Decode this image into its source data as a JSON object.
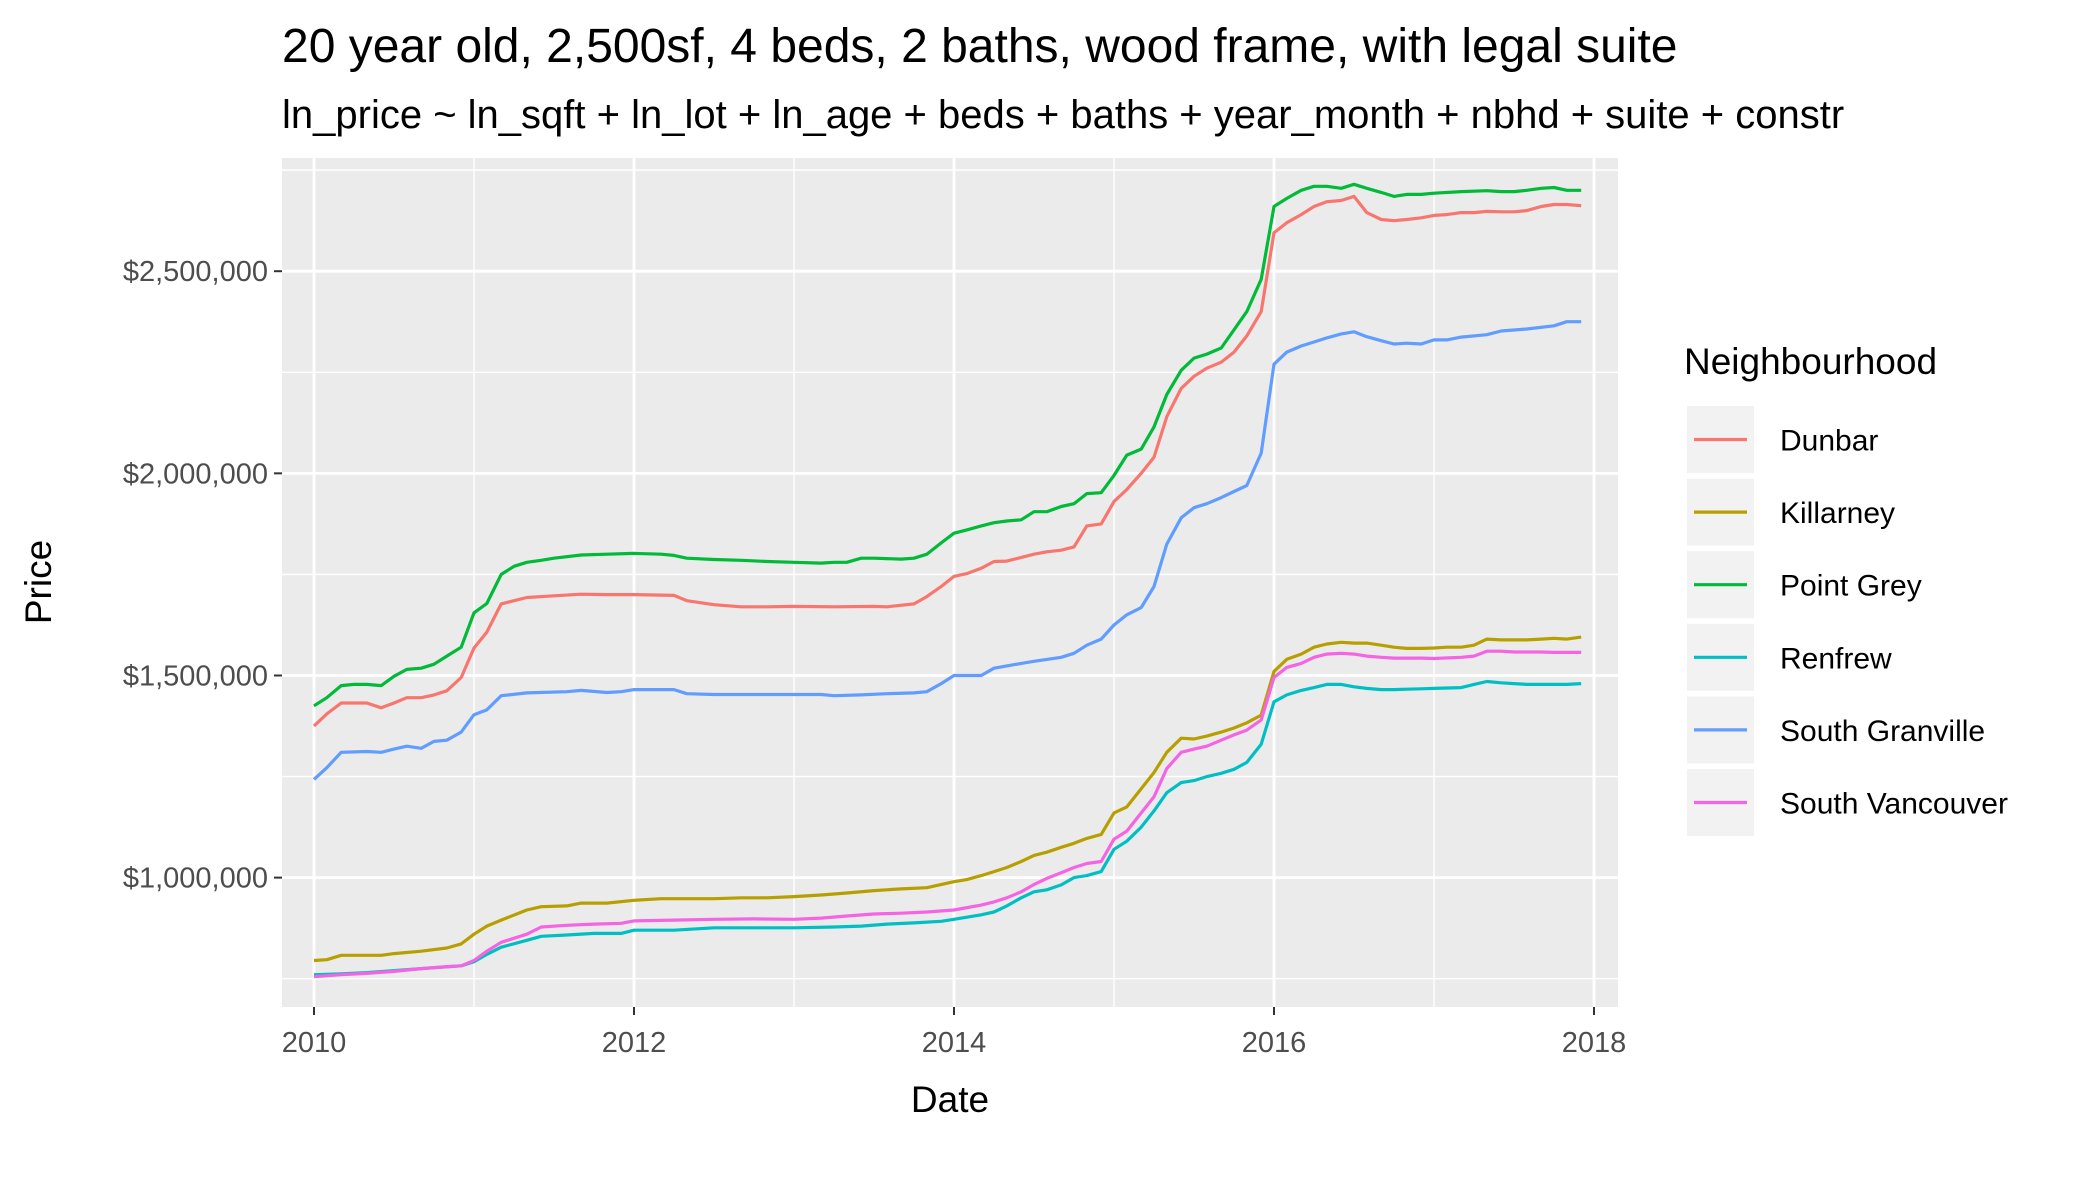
{
  "chart_data": {
    "type": "line",
    "title": "20 year old, 2,500sf, 4 beds, 2 baths, wood frame, with legal suite",
    "subtitle": "ln_price ~ ln_sqft + ln_lot + ln_age + beds + baths + year_month + nbhd + suite + constr",
    "xlabel": "Date",
    "ylabel": "Price",
    "xlim": [
      2009.8,
      2018.15
    ],
    "ylim": [
      680000,
      2780000
    ],
    "x_ticks": [
      2010,
      2012,
      2014,
      2016,
      2018
    ],
    "x_tick_labels": [
      "2010",
      "2012",
      "2014",
      "2016",
      "2018"
    ],
    "y_ticks": [
      1000000,
      1500000,
      2000000,
      2500000
    ],
    "y_tick_labels": [
      "$1,000,000",
      "$1,500,000",
      "$2,000,000",
      "$2,500,000"
    ],
    "grid": true,
    "legend": {
      "title": "Neighbourhood",
      "position": "right"
    },
    "series": [
      {
        "name": "Dunbar",
        "color": "#F8766D",
        "x": [
          2010.0,
          2010.08,
          2010.17,
          2010.33,
          2010.42,
          2010.5,
          2010.58,
          2010.67,
          2010.75,
          2010.83,
          2010.92,
          2011.0,
          2011.08,
          2011.17,
          2011.33,
          2011.5,
          2011.67,
          2011.83,
          2012.0,
          2012.25,
          2012.33,
          2012.5,
          2012.67,
          2012.83,
          2013.0,
          2013.25,
          2013.5,
          2013.58,
          2013.75,
          2013.83,
          2013.92,
          2014.0,
          2014.08,
          2014.17,
          2014.25,
          2014.33,
          2014.42,
          2014.5,
          2014.58,
          2014.67,
          2014.75,
          2014.83,
          2014.92,
          2015.0,
          2015.08,
          2015.17,
          2015.25,
          2015.33,
          2015.42,
          2015.5,
          2015.58,
          2015.67,
          2015.75,
          2015.83,
          2015.92,
          2016.0,
          2016.08,
          2016.17,
          2016.25,
          2016.33,
          2016.42,
          2016.5,
          2016.58,
          2016.67,
          2016.75,
          2016.83,
          2016.92,
          2017.0,
          2017.08,
          2017.17,
          2017.25,
          2017.33,
          2017.42,
          2017.5,
          2017.58,
          2017.67,
          2017.75,
          2017.83,
          2017.92
        ],
        "y": [
          1375000,
          1405000,
          1432000,
          1432000,
          1420000,
          1432000,
          1445000,
          1445000,
          1452000,
          1462000,
          1495000,
          1568000,
          1607000,
          1677000,
          1693000,
          1697000,
          1701000,
          1700000,
          1700000,
          1698000,
          1685000,
          1675000,
          1670000,
          1670000,
          1671000,
          1670000,
          1671000,
          1670000,
          1677000,
          1695000,
          1720000,
          1745000,
          1752000,
          1765000,
          1782000,
          1783000,
          1792000,
          1800000,
          1806000,
          1810000,
          1818000,
          1870000,
          1875000,
          1930000,
          1960000,
          2000000,
          2040000,
          2140000,
          2210000,
          2240000,
          2260000,
          2275000,
          2300000,
          2340000,
          2400000,
          2595000,
          2620000,
          2640000,
          2660000,
          2672000,
          2675000,
          2685000,
          2645000,
          2628000,
          2625000,
          2628000,
          2632000,
          2638000,
          2640000,
          2645000,
          2645000,
          2648000,
          2647000,
          2647000,
          2650000,
          2660000,
          2665000,
          2665000,
          2662000
        ]
      },
      {
        "name": "Killarney",
        "color": "#B79F00",
        "x": [
          2010.0,
          2010.08,
          2010.17,
          2010.33,
          2010.42,
          2010.5,
          2010.67,
          2010.83,
          2010.92,
          2011.0,
          2011.08,
          2011.17,
          2011.33,
          2011.42,
          2011.58,
          2011.67,
          2011.83,
          2012.0,
          2012.17,
          2012.33,
          2012.5,
          2012.67,
          2012.83,
          2013.0,
          2013.17,
          2013.33,
          2013.5,
          2013.58,
          2013.67,
          2013.83,
          2014.0,
          2014.08,
          2014.17,
          2014.25,
          2014.33,
          2014.42,
          2014.5,
          2014.58,
          2014.67,
          2014.75,
          2014.83,
          2014.92,
          2015.0,
          2015.08,
          2015.17,
          2015.25,
          2015.33,
          2015.42,
          2015.5,
          2015.58,
          2015.67,
          2015.75,
          2015.83,
          2015.92,
          2016.0,
          2016.08,
          2016.17,
          2016.25,
          2016.33,
          2016.42,
          2016.5,
          2016.58,
          2016.67,
          2016.75,
          2016.83,
          2016.92,
          2017.0,
          2017.08,
          2017.17,
          2017.25,
          2017.33,
          2017.42,
          2017.5,
          2017.58,
          2017.67,
          2017.75,
          2017.83,
          2017.92
        ],
        "y": [
          795000,
          797000,
          808000,
          808000,
          808000,
          812000,
          818000,
          826000,
          836000,
          860000,
          880000,
          895000,
          920000,
          928000,
          930000,
          937000,
          937000,
          944000,
          948000,
          948000,
          948000,
          950000,
          950000,
          953000,
          957000,
          962000,
          968000,
          970000,
          972000,
          975000,
          990000,
          995000,
          1005000,
          1015000,
          1025000,
          1040000,
          1055000,
          1063000,
          1075000,
          1085000,
          1097000,
          1107000,
          1160000,
          1175000,
          1220000,
          1260000,
          1310000,
          1345000,
          1343000,
          1350000,
          1360000,
          1370000,
          1383000,
          1402000,
          1510000,
          1540000,
          1553000,
          1570000,
          1578000,
          1582000,
          1580000,
          1580000,
          1575000,
          1570000,
          1567000,
          1567000,
          1568000,
          1570000,
          1570000,
          1575000,
          1590000,
          1588000,
          1588000,
          1588000,
          1590000,
          1592000,
          1590000,
          1595000
        ]
      },
      {
        "name": "Point Grey",
        "color": "#00BA38",
        "x": [
          2010.0,
          2010.08,
          2010.17,
          2010.25,
          2010.33,
          2010.42,
          2010.5,
          2010.58,
          2010.67,
          2010.75,
          2010.83,
          2010.92,
          2011.0,
          2011.08,
          2011.17,
          2011.25,
          2011.33,
          2011.42,
          2011.5,
          2011.67,
          2011.83,
          2012.0,
          2012.17,
          2012.25,
          2012.33,
          2012.5,
          2012.67,
          2012.83,
          2013.0,
          2013.17,
          2013.25,
          2013.33,
          2013.42,
          2013.5,
          2013.67,
          2013.75,
          2013.83,
          2013.92,
          2014.0,
          2014.08,
          2014.17,
          2014.25,
          2014.33,
          2014.42,
          2014.5,
          2014.58,
          2014.67,
          2014.75,
          2014.83,
          2014.92,
          2015.0,
          2015.08,
          2015.17,
          2015.25,
          2015.33,
          2015.42,
          2015.5,
          2015.58,
          2015.67,
          2015.75,
          2015.83,
          2015.92,
          2016.0,
          2016.08,
          2016.17,
          2016.25,
          2016.33,
          2016.42,
          2016.5,
          2016.58,
          2016.67,
          2016.75,
          2016.83,
          2016.92,
          2017.0,
          2017.17,
          2017.33,
          2017.42,
          2017.5,
          2017.58,
          2017.67,
          2017.75,
          2017.83,
          2017.92
        ],
        "y": [
          1425000,
          1445000,
          1475000,
          1478000,
          1478000,
          1475000,
          1498000,
          1515000,
          1518000,
          1528000,
          1548000,
          1570000,
          1655000,
          1678000,
          1750000,
          1770000,
          1780000,
          1785000,
          1790000,
          1798000,
          1800000,
          1802000,
          1800000,
          1797000,
          1790000,
          1787000,
          1785000,
          1782000,
          1780000,
          1778000,
          1780000,
          1780000,
          1790000,
          1790000,
          1788000,
          1790000,
          1800000,
          1828000,
          1852000,
          1860000,
          1870000,
          1878000,
          1882000,
          1885000,
          1905000,
          1905000,
          1918000,
          1925000,
          1950000,
          1952000,
          1995000,
          2045000,
          2060000,
          2115000,
          2195000,
          2255000,
          2285000,
          2295000,
          2310000,
          2355000,
          2400000,
          2480000,
          2660000,
          2680000,
          2700000,
          2710000,
          2710000,
          2705000,
          2715000,
          2705000,
          2695000,
          2685000,
          2690000,
          2690000,
          2693000,
          2697000,
          2699000,
          2697000,
          2697000,
          2700000,
          2705000,
          2707000,
          2700000,
          2700000
        ]
      },
      {
        "name": "Renfrew",
        "color": "#00BFC4",
        "x": [
          2010.0,
          2010.17,
          2010.33,
          2010.5,
          2010.67,
          2010.92,
          2011.0,
          2011.08,
          2011.17,
          2011.33,
          2011.42,
          2011.58,
          2011.75,
          2011.92,
          2012.0,
          2012.25,
          2012.5,
          2012.75,
          2013.0,
          2013.25,
          2013.42,
          2013.58,
          2013.75,
          2013.92,
          2014.0,
          2014.17,
          2014.25,
          2014.33,
          2014.42,
          2014.5,
          2014.58,
          2014.67,
          2014.75,
          2014.83,
          2014.92,
          2015.0,
          2015.08,
          2015.17,
          2015.25,
          2015.33,
          2015.42,
          2015.5,
          2015.58,
          2015.67,
          2015.75,
          2015.83,
          2015.92,
          2016.0,
          2016.08,
          2016.17,
          2016.25,
          2016.33,
          2016.42,
          2016.5,
          2016.58,
          2016.67,
          2016.75,
          2016.83,
          2016.92,
          2017.0,
          2017.17,
          2017.25,
          2017.33,
          2017.42,
          2017.5,
          2017.58,
          2017.67,
          2017.75,
          2017.83,
          2017.92
        ],
        "y": [
          760000,
          762000,
          765000,
          770000,
          775000,
          782000,
          792000,
          810000,
          828000,
          845000,
          855000,
          858000,
          862000,
          862000,
          870000,
          870000,
          876000,
          876000,
          876000,
          878000,
          880000,
          885000,
          888000,
          892000,
          897000,
          908000,
          915000,
          930000,
          950000,
          965000,
          970000,
          982000,
          1000000,
          1005000,
          1015000,
          1070000,
          1090000,
          1125000,
          1165000,
          1210000,
          1235000,
          1240000,
          1250000,
          1258000,
          1268000,
          1285000,
          1330000,
          1435000,
          1452000,
          1463000,
          1470000,
          1478000,
          1478000,
          1472000,
          1468000,
          1465000,
          1465000,
          1466000,
          1467000,
          1468000,
          1470000,
          1478000,
          1485000,
          1482000,
          1480000,
          1478000,
          1478000,
          1478000,
          1478000,
          1480000
        ]
      },
      {
        "name": "South Granville",
        "color": "#619CFF",
        "x": [
          2010.0,
          2010.08,
          2010.17,
          2010.33,
          2010.42,
          2010.5,
          2010.58,
          2010.67,
          2010.75,
          2010.83,
          2010.92,
          2011.0,
          2011.08,
          2011.17,
          2011.33,
          2011.58,
          2011.67,
          2011.83,
          2011.92,
          2012.0,
          2012.25,
          2012.33,
          2012.5,
          2012.75,
          2013.0,
          2013.17,
          2013.25,
          2013.42,
          2013.58,
          2013.75,
          2013.83,
          2013.92,
          2014.0,
          2014.08,
          2014.17,
          2014.25,
          2014.42,
          2014.5,
          2014.67,
          2014.75,
          2014.83,
          2014.92,
          2015.0,
          2015.08,
          2015.17,
          2015.25,
          2015.33,
          2015.42,
          2015.5,
          2015.58,
          2015.67,
          2015.75,
          2015.83,
          2015.92,
          2016.0,
          2016.08,
          2016.17,
          2016.25,
          2016.33,
          2016.42,
          2016.5,
          2016.58,
          2016.67,
          2016.75,
          2016.83,
          2016.92,
          2017.0,
          2017.08,
          2017.17,
          2017.33,
          2017.42,
          2017.58,
          2017.75,
          2017.83,
          2017.92
        ],
        "y": [
          1243000,
          1272000,
          1310000,
          1312000,
          1310000,
          1318000,
          1325000,
          1320000,
          1337000,
          1340000,
          1360000,
          1403000,
          1415000,
          1450000,
          1457000,
          1460000,
          1463000,
          1458000,
          1460000,
          1465000,
          1465000,
          1455000,
          1453000,
          1453000,
          1453000,
          1453000,
          1450000,
          1452000,
          1455000,
          1457000,
          1460000,
          1480000,
          1500000,
          1500000,
          1500000,
          1518000,
          1530000,
          1535000,
          1545000,
          1555000,
          1575000,
          1590000,
          1625000,
          1650000,
          1668000,
          1720000,
          1825000,
          1890000,
          1915000,
          1925000,
          1940000,
          1955000,
          1970000,
          2050000,
          2270000,
          2300000,
          2315000,
          2325000,
          2335000,
          2345000,
          2350000,
          2338000,
          2328000,
          2320000,
          2322000,
          2320000,
          2330000,
          2330000,
          2337000,
          2343000,
          2352000,
          2357000,
          2365000,
          2375000,
          2375000
        ]
      },
      {
        "name": "South Vancouver",
        "color": "#F564E3",
        "x": [
          2010.0,
          2010.17,
          2010.33,
          2010.5,
          2010.67,
          2010.83,
          2010.92,
          2011.0,
          2011.08,
          2011.17,
          2011.33,
          2011.42,
          2011.58,
          2011.75,
          2011.92,
          2012.0,
          2012.25,
          2012.5,
          2012.75,
          2013.0,
          2013.17,
          2013.33,
          2013.5,
          2013.67,
          2013.83,
          2014.0,
          2014.17,
          2014.25,
          2014.33,
          2014.42,
          2014.5,
          2014.58,
          2014.67,
          2014.75,
          2014.83,
          2014.92,
          2015.0,
          2015.08,
          2015.17,
          2015.25,
          2015.33,
          2015.42,
          2015.5,
          2015.58,
          2015.67,
          2015.75,
          2015.83,
          2015.92,
          2016.0,
          2016.08,
          2016.17,
          2016.25,
          2016.33,
          2016.42,
          2016.5,
          2016.58,
          2016.67,
          2016.75,
          2016.83,
          2016.92,
          2017.0,
          2017.17,
          2017.25,
          2017.33,
          2017.42,
          2017.5,
          2017.58,
          2017.67,
          2017.75,
          2017.83,
          2017.92
        ],
        "y": [
          755000,
          760000,
          763000,
          768000,
          775000,
          780000,
          782000,
          795000,
          818000,
          840000,
          860000,
          878000,
          882000,
          885000,
          887000,
          893000,
          895000,
          897000,
          898000,
          897000,
          900000,
          905000,
          910000,
          912000,
          915000,
          920000,
          932000,
          940000,
          950000,
          965000,
          983000,
          998000,
          1012000,
          1025000,
          1035000,
          1040000,
          1095000,
          1115000,
          1160000,
          1200000,
          1270000,
          1310000,
          1318000,
          1325000,
          1340000,
          1353000,
          1365000,
          1390000,
          1495000,
          1520000,
          1530000,
          1545000,
          1553000,
          1555000,
          1553000,
          1548000,
          1545000,
          1543000,
          1543000,
          1543000,
          1542000,
          1545000,
          1548000,
          1560000,
          1560000,
          1558000,
          1558000,
          1558000,
          1557000,
          1557000,
          1557000
        ]
      }
    ]
  }
}
